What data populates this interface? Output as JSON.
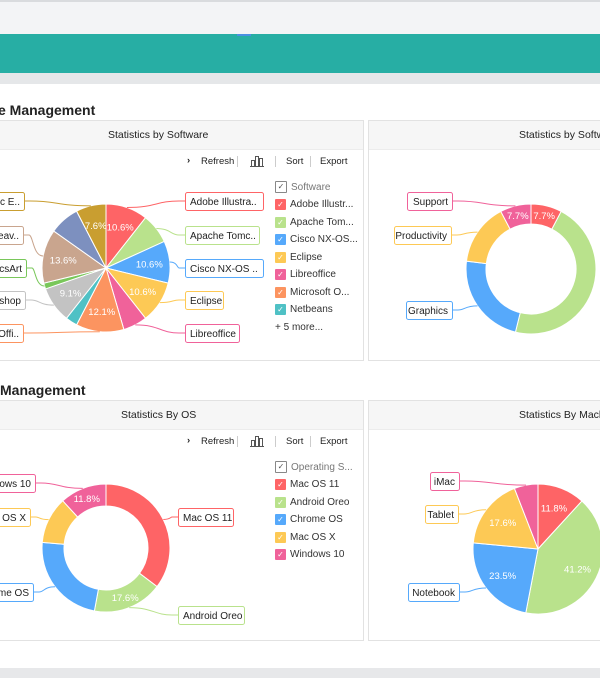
{
  "sections": [
    {
      "heading": "e Management"
    },
    {
      "heading": "Management"
    }
  ],
  "toolbar": {
    "refresh": "Refresh",
    "sort": "Sort",
    "export": "Export"
  },
  "colors": {
    "teal_header": "#27aea4",
    "red": "#fe6466",
    "green": "#b9e28c",
    "blue": "#56a9fb",
    "yellow": "#fdc955",
    "pink": "#f0629a",
    "orange": "#fc9460",
    "teal": "#4fc1c5",
    "gray": "#c3c3c3",
    "lightgreen": "#79c75a",
    "tan": "#c9a58e",
    "slate": "#7d90bf",
    "gold": "#c99e30"
  },
  "cards": [
    {
      "title": "Statistics by Software",
      "legend": {
        "header": "Software",
        "items": [
          "Adobe Illustr...",
          "Apache Tom...",
          "Cisco NX-OS...",
          "Eclipse",
          "Libreoffice",
          "Microsoft O...",
          "Netbeans"
        ],
        "more": "+ 5 more..."
      }
    },
    {
      "title": "Statistics by Softwa"
    },
    {
      "title": "Statistics By OS",
      "legend": {
        "header": "Operating S...",
        "items": [
          "Mac OS 11",
          "Android Oreo",
          "Chrome OS",
          "Mac OS X",
          "Windows 10"
        ]
      }
    },
    {
      "title": "Statistics By Machi"
    }
  ],
  "chart_data": [
    {
      "type": "pie",
      "title": "Statistics by Software",
      "slices": [
        {
          "label": "Adobe Illustra..",
          "value": 10.6,
          "value_label": "10.6%",
          "color": "#fe6466"
        },
        {
          "label": "Apache Tomc..",
          "value": 7.6,
          "value_label": "",
          "color": "#b9e28c"
        },
        {
          "label": "Cisco NX-OS ..",
          "value": 10.6,
          "value_label": "10.6%",
          "color": "#56a9fb"
        },
        {
          "label": "Eclipse",
          "value": 10.6,
          "value_label": "10.6%",
          "color": "#fdc955"
        },
        {
          "label": "Libreoffice",
          "value": 6.1,
          "value_label": "",
          "color": "#f0629a"
        },
        {
          "label": "Offi..",
          "value": 12.1,
          "value_label": "12.1%",
          "color": "#fc9460"
        },
        {
          "label": "",
          "value": 3.0,
          "value_label": "",
          "color": "#4fc1c5"
        },
        {
          "label": "oshop",
          "value": 9.1,
          "value_label": "9.1%",
          "color": "#c3c3c3"
        },
        {
          "label": "csArt",
          "value": 1.5,
          "value_label": "",
          "color": "#79c75a"
        },
        {
          "label": "Weav..",
          "value": 13.6,
          "value_label": "13.6%",
          "color": "#c9a58e"
        },
        {
          "label": "",
          "value": 7.6,
          "value_label": "",
          "color": "#7d90bf"
        },
        {
          "label": "sic E..",
          "value": 7.6,
          "value_label": "7.6%",
          "color": "#c99e30"
        }
      ]
    },
    {
      "type": "donut",
      "title": "Statistics by Softwa",
      "slices": [
        {
          "label": "",
          "value": 7.7,
          "value_label": "7.7%",
          "color": "#fe6466"
        },
        {
          "label": "",
          "value": 46.2,
          "value_label": "",
          "color": "#b9e28c"
        },
        {
          "label": "Graphics",
          "value": 23.1,
          "value_label": "",
          "color": "#56a9fb"
        },
        {
          "label": "Productivity",
          "value": 15.4,
          "value_label": "",
          "color": "#fdc955"
        },
        {
          "label": "Support",
          "value": 7.7,
          "value_label": "7.7%",
          "color": "#f0629a"
        }
      ]
    },
    {
      "type": "donut",
      "title": "Statistics By OS",
      "slices": [
        {
          "label": "Mac OS 11",
          "value": 35.3,
          "value_label": "",
          "color": "#fe6466"
        },
        {
          "label": "Android Oreo",
          "value": 17.6,
          "value_label": "17.6%",
          "color": "#b9e28c"
        },
        {
          "label": "ome OS",
          "value": 23.5,
          "value_label": "",
          "color": "#56a9fb"
        },
        {
          "label": "c OS X",
          "value": 11.8,
          "value_label": "",
          "color": "#fdc955"
        },
        {
          "label": "ows 10",
          "value": 11.8,
          "value_label": "11.8%",
          "color": "#f0629a"
        }
      ]
    },
    {
      "type": "pie",
      "title": "Statistics By Machi",
      "slices": [
        {
          "label": "",
          "value": 11.8,
          "value_label": "11.8%",
          "color": "#fe6466"
        },
        {
          "label": "",
          "value": 41.2,
          "value_label": "41.2%",
          "color": "#b9e28c"
        },
        {
          "label": "Notebook",
          "value": 23.5,
          "value_label": "23.5%",
          "color": "#56a9fb"
        },
        {
          "label": "Tablet",
          "value": 17.6,
          "value_label": "17.6%",
          "color": "#fdc955"
        },
        {
          "label": "iMac",
          "value": 5.9,
          "value_label": "",
          "color": "#f0629a"
        }
      ]
    }
  ]
}
